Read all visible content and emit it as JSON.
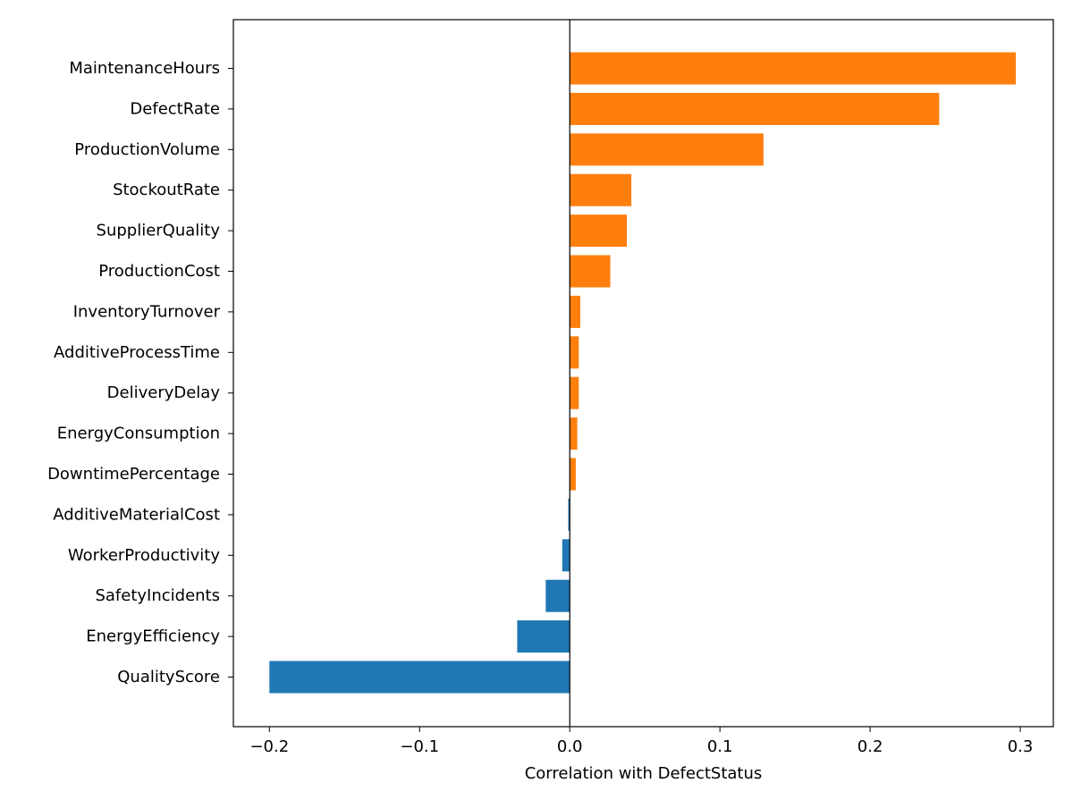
{
  "chart_data": {
    "type": "bar",
    "orientation": "horizontal",
    "categories": [
      "MaintenanceHours",
      "DefectRate",
      "ProductionVolume",
      "StockoutRate",
      "SupplierQuality",
      "ProductionCost",
      "InventoryTurnover",
      "AdditiveProcessTime",
      "DeliveryDelay",
      "EnergyConsumption",
      "DowntimePercentage",
      "AdditiveMaterialCost",
      "WorkerProductivity",
      "SafetyIncidents",
      "EnergyEfficiency",
      "QualityScore"
    ],
    "values": [
      0.297,
      0.246,
      0.129,
      0.041,
      0.038,
      0.027,
      0.007,
      0.006,
      0.006,
      0.005,
      0.004,
      -0.001,
      -0.005,
      -0.016,
      -0.035,
      -0.2
    ],
    "xlabel": "Correlation with DefectStatus",
    "ylabel": "",
    "title": "",
    "xlim": [
      -0.224,
      0.322
    ],
    "xticks": [
      -0.2,
      -0.1,
      0.0,
      0.1,
      0.2,
      0.3
    ],
    "xtick_labels": [
      "−0.2",
      "−0.1",
      "0.0",
      "0.1",
      "0.2",
      "0.3"
    ],
    "zero_line": true,
    "grid": false,
    "colors": {
      "positive": "#ff7f0e",
      "negative": "#1f77b4",
      "axis": "#000000"
    }
  }
}
